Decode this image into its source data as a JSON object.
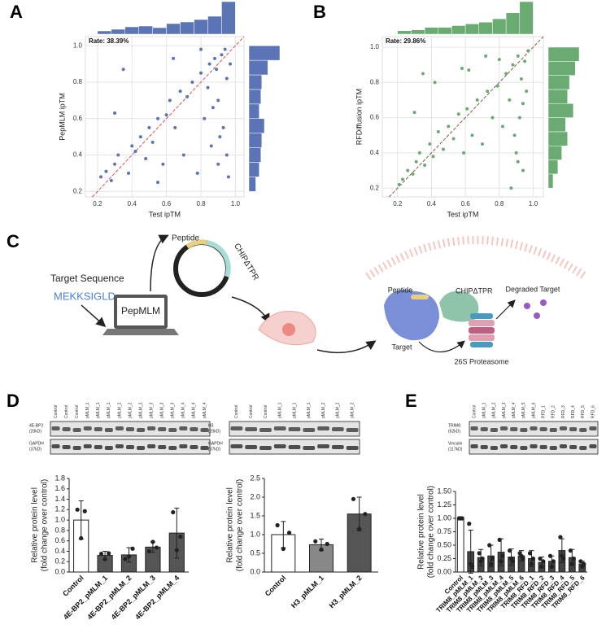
{
  "panel_labels": [
    "A",
    "B",
    "C",
    "D",
    "E"
  ],
  "chart_data": [
    {
      "type": "scatter",
      "rate_label": "Rate: 38.39%",
      "x_label": "Test ipTM",
      "y_label": "PepMLM ipTM",
      "color": "#5a74b5",
      "grid": true,
      "identity_line": true,
      "xlim": [
        0.13,
        1.05
      ],
      "ylim": [
        0.17,
        1.05
      ],
      "xticks": [
        0.2,
        0.4,
        0.6,
        0.8,
        {
          "value": 1,
          "label": "1.0"
        }
      ],
      "yticks": [
        0.2,
        0.4,
        0.6,
        0.8,
        {
          "value": 1,
          "label": "1.0"
        }
      ],
      "x": [
        0.22,
        0.25,
        0.28,
        0.3,
        0.32,
        0.35,
        0.38,
        0.4,
        0.42,
        0.45,
        0.48,
        0.5,
        0.52,
        0.55,
        0.58,
        0.6,
        0.62,
        0.65,
        0.68,
        0.7,
        0.72,
        0.75,
        0.78,
        0.8,
        0.82,
        0.85,
        0.86,
        0.88,
        0.9,
        0.9,
        0.92,
        0.93,
        0.94,
        0.95,
        0.96,
        0.97,
        0.64,
        0.8,
        0.55,
        0.3,
        0.87,
        0.91,
        0.84,
        0.95,
        0.89
      ],
      "y": [
        0.28,
        0.31,
        0.26,
        0.35,
        0.4,
        0.87,
        0.3,
        0.45,
        0.42,
        0.5,
        0.38,
        0.55,
        0.47,
        0.6,
        0.35,
        0.62,
        0.7,
        0.55,
        0.75,
        0.4,
        0.72,
        0.8,
        0.3,
        0.85,
        0.6,
        0.9,
        0.45,
        0.93,
        0.7,
        0.35,
        0.95,
        0.55,
        0.98,
        0.82,
        0.28,
        0.9,
        0.93,
        0.98,
        0.25,
        0.63,
        0.66,
        0.5,
        0.77,
        0.4,
        0.87
      ],
      "x_hist": {
        "bins": [
          0.2,
          0.28,
          0.36,
          0.44,
          0.52,
          0.6,
          0.68,
          0.76,
          0.84,
          0.92,
          1.0
        ],
        "counts": [
          4,
          6,
          9,
          10,
          8,
          13,
          15,
          18,
          22,
          40
        ]
      },
      "y_hist": {
        "bins": [
          0.2,
          0.28,
          0.36,
          0.44,
          0.52,
          0.6,
          0.68,
          0.76,
          0.84,
          0.92,
          1.0
        ],
        "counts": [
          8,
          12,
          14,
          15,
          18,
          12,
          14,
          15,
          22,
          36
        ]
      }
    },
    {
      "type": "scatter",
      "rate_label": "Rate: 29.86%",
      "x_label": "Test ipTM",
      "y_label": "RFDiffusion ipTM",
      "color": "#6aab72",
      "grid": true,
      "identity_line": true,
      "xlim": [
        0.11,
        1.06
      ],
      "ylim": [
        0.15,
        1.06
      ],
      "xticks": [
        0.2,
        0.4,
        0.6,
        0.8,
        {
          "value": 1,
          "label": "1.0"
        }
      ],
      "yticks": [
        0.2,
        0.4,
        0.6,
        0.8,
        {
          "value": 1,
          "label": "1.0"
        }
      ],
      "x": [
        0.21,
        0.23,
        0.26,
        0.29,
        0.31,
        0.33,
        0.36,
        0.39,
        0.41,
        0.44,
        0.47,
        0.5,
        0.53,
        0.56,
        0.59,
        0.61,
        0.64,
        0.67,
        0.7,
        0.73,
        0.76,
        0.79,
        0.82,
        0.84,
        0.86,
        0.88,
        0.9,
        0.91,
        0.92,
        0.93,
        0.94,
        0.95,
        0.96,
        0.97,
        0.3,
        0.35,
        0.42,
        0.58,
        0.72,
        0.89,
        0.91,
        0.94,
        0.87,
        0.62,
        0.8
      ],
      "y": [
        0.22,
        0.25,
        0.3,
        0.28,
        0.35,
        0.4,
        0.33,
        0.45,
        0.38,
        0.52,
        0.42,
        0.55,
        0.48,
        0.62,
        0.4,
        0.65,
        0.5,
        0.7,
        0.45,
        0.75,
        0.6,
        0.78,
        0.55,
        0.85,
        0.7,
        0.9,
        0.4,
        0.95,
        0.6,
        0.82,
        0.3,
        0.92,
        0.75,
        0.98,
        0.63,
        0.85,
        0.8,
        0.88,
        0.95,
        0.5,
        0.35,
        0.68,
        0.2,
        0.87,
        0.93
      ],
      "x_hist": {
        "bins": [
          0.2,
          0.28,
          0.36,
          0.44,
          0.52,
          0.6,
          0.68,
          0.76,
          0.84,
          0.92,
          1.0
        ],
        "counts": [
          4,
          5,
          8,
          8,
          10,
          12,
          14,
          18,
          25,
          38
        ]
      },
      "y_hist": {
        "bins": [
          0.2,
          0.28,
          0.36,
          0.44,
          0.52,
          0.6,
          0.68,
          0.76,
          0.84,
          0.92,
          1.0
        ],
        "counts": [
          5,
          10,
          14,
          20,
          18,
          26,
          20,
          22,
          28,
          32
        ]
      }
    },
    {
      "type": "bar",
      "y_label": [
        "Relative protein level",
        "(fold change over control)"
      ],
      "categories": [
        "Control",
        "4E-BP2_pMLM_1",
        "4E-BP2_pMLM_2",
        "4E-BP2_pMLM_3",
        "4E-BP2_pMLM_4"
      ],
      "values": [
        1.0,
        0.32,
        0.33,
        0.48,
        0.75
      ],
      "errors": [
        0.37,
        0.08,
        0.14,
        0.1,
        0.48
      ],
      "points": [
        [
          1.2,
          0.65,
          1.17
        ],
        [
          0.35,
          0.25,
          0.36
        ],
        [
          0.25,
          0.3,
          0.45
        ],
        [
          0.4,
          0.58,
          0.47
        ],
        [
          1.15,
          0.42,
          0.68
        ]
      ],
      "colors": [
        "#ffffff",
        "#555555",
        "#555555",
        "#555555",
        "#555555"
      ],
      "ylim": [
        0,
        1.8
      ],
      "yticks": [
        {
          "value": 0,
          "label": "0.0"
        },
        0.2,
        0.4,
        0.6,
        0.8,
        {
          "value": 1,
          "label": "1.0"
        },
        1.2,
        1.4,
        1.6,
        1.8
      ]
    },
    {
      "type": "bar",
      "y_label": [
        "Relative protein level",
        "(fold change over control)"
      ],
      "categories": [
        "Control",
        "H3_pMLM_1",
        "H3_pMLM_2"
      ],
      "values": [
        1.0,
        0.73,
        1.55
      ],
      "errors": [
        0.35,
        0.15,
        0.45
      ],
      "points": [
        [
          1.25,
          0.62,
          1.05
        ],
        [
          0.82,
          0.6,
          0.75
        ],
        [
          1.95,
          1.15,
          1.55
        ]
      ],
      "colors": [
        "#ffffff",
        "#888888",
        "#555555"
      ],
      "ylim": [
        0,
        2.5
      ],
      "yticks": [
        {
          "value": 0,
          "label": "0.0"
        },
        0.5,
        {
          "value": 1,
          "label": "1.0"
        },
        1.5,
        {
          "value": 2,
          "label": "2.0"
        },
        2.5
      ]
    },
    {
      "type": "bar",
      "y_label": [
        "Relative protein level",
        "(fold change over control)"
      ],
      "categories": [
        "Control",
        "TRIM8_pMLM_1",
        "TRIM8_pMLM_2",
        "TRIM8_pMLM_3",
        "TRIM8_pMLM_4",
        "TRIM8_pMLM_5",
        "TRIM8_pMLM_6",
        "TRIM8_RFD_1",
        "TRIM8_RFD_2",
        "TRIM8_RFD_3",
        "TRIM8_RFD_4",
        "TRIM8_RFD_5",
        "TRIM8_RFD_6"
      ],
      "values": [
        1.0,
        0.38,
        0.27,
        0.3,
        0.37,
        0.28,
        0.3,
        0.25,
        0.18,
        0.2,
        0.4,
        0.27,
        0.15
      ],
      "errors": [
        0.01,
        0.4,
        0.15,
        0.2,
        0.25,
        0.15,
        0.1,
        0.15,
        0.1,
        0.1,
        0.22,
        0.15,
        0.05
      ],
      "points": [
        [
          1.0,
          1.0,
          1.0
        ],
        [
          0.9,
          0.15,
          0.1
        ],
        [
          0.35,
          0.2,
          0.25
        ],
        [
          0.5,
          0.15,
          0.25
        ],
        [
          0.6,
          0.2,
          0.3
        ],
        [
          0.4,
          0.25,
          0.2
        ],
        [
          0.35,
          0.3,
          0.25
        ],
        [
          0.35,
          0.15,
          0.25
        ],
        [
          0.25,
          0.1,
          0.2
        ],
        [
          0.3,
          0.1,
          0.2
        ],
        [
          0.65,
          0.3,
          0.25
        ],
        [
          0.4,
          0.15,
          0.25
        ],
        [
          0.2,
          0.1,
          0.15
        ]
      ],
      "colors": [
        "#ffffff",
        "#444444",
        "#444444",
        "#444444",
        "#444444",
        "#444444",
        "#444444",
        "#444444",
        "#444444",
        "#444444",
        "#444444",
        "#444444",
        "#444444"
      ],
      "ylim": [
        0,
        1.5
      ],
      "yticks": [
        {
          "value": 0,
          "label": "0.00"
        },
        0.25,
        {
          "value": 0.5,
          "label": "0.50"
        },
        0.75,
        {
          "value": 1,
          "label": "1.00"
        },
        1.25,
        {
          "value": 1.5,
          "label": "1.50"
        }
      ]
    }
  ],
  "diagram": {
    "target_title": "Target Sequence",
    "sequence": "MEKKSIGLD...",
    "model": "PepMLM",
    "peptide": "Peptide",
    "chip": "CHIPΔTPR",
    "peptide_2": "Peptide",
    "chip_2": "CHIPΔTPR",
    "degraded": "Degraded Target",
    "target": "Target",
    "proteasome": "26S Proteasome"
  },
  "blots": [
    {
      "lanes": [
        "Control",
        "Control",
        "Control",
        "pMLM_1",
        "pMLM_1",
        "pMLM_1",
        "pMLM_2",
        "pMLM_2",
        "pMLM_2",
        "pMLM_3",
        "pMLM_3",
        "pMLM_3",
        "pMLM_4",
        "pMLM_4",
        "pMLM_4"
      ],
      "rows": [
        [
          "4E-BP2",
          "(20kD)"
        ],
        [
          "GAPDH",
          "(37kD)"
        ]
      ]
    },
    {
      "lanes": [
        "Control",
        "Control",
        "Control",
        "pMLM_1",
        "pMLM_1",
        "pMLM_1",
        "pMLM_2",
        "pMLM_2",
        "pMLM_2"
      ],
      "rows": [
        [
          "H3",
          "(20kD)"
        ],
        [
          "GAPDH",
          "(37kD)"
        ]
      ]
    },
    {
      "lanes": [
        "Control",
        "pMLM_1",
        "pMLM_2",
        "pMLM_3",
        "pMLM_4",
        "pMLM_5",
        "pMLM_6",
        "RFD_1",
        "RFD_2",
        "RFD_3",
        "RFD_4",
        "RFD_5",
        "RFD_6"
      ],
      "rows": [
        [
          "TRIM8",
          "(62kD)"
        ],
        [
          "Vinculin",
          "(117kD)"
        ]
      ]
    }
  ]
}
